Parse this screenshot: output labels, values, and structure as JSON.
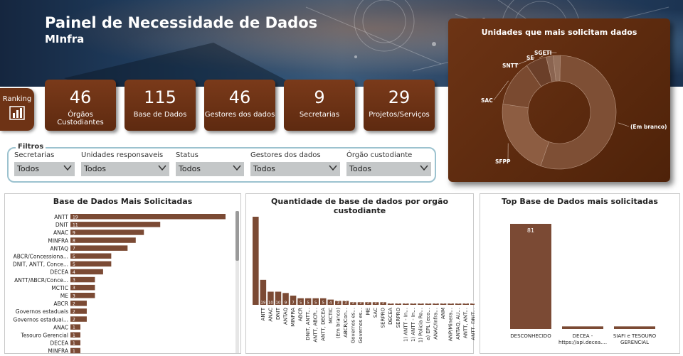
{
  "header": {
    "title": "Painel de Necessidade de Dados",
    "subtitle": "MInfra"
  },
  "ranking": {
    "label": "Ranking"
  },
  "kpis": [
    {
      "value": "46",
      "label": "Órgãos Custodiantes"
    },
    {
      "value": "115",
      "label": "Base de Dados"
    },
    {
      "value": "46",
      "label": "Gestores dos dados"
    },
    {
      "value": "9",
      "label": "Secretarias"
    },
    {
      "value": "29",
      "label": "Projetos/Serviços"
    }
  ],
  "filters": {
    "title": "Filtros",
    "items": [
      {
        "label": "Secretarias",
        "value": "Todos"
      },
      {
        "label": "Unidades responsaveis",
        "value": "Todos"
      },
      {
        "label": "Status",
        "value": "Todos"
      },
      {
        "label": "Gestores dos dados",
        "value": "Todos"
      },
      {
        "label": "Órgão custodiante",
        "value": "Todos"
      }
    ]
  },
  "colors": {
    "brown": "#7a4a30",
    "dark_brown": "#5e2a10",
    "bar": "#7b4a34",
    "filter_border": "#9cc2cf"
  },
  "chart_data": [
    {
      "type": "pie",
      "title": "Unidades que mais solicitam dados",
      "labels": [
        "(Em branco)",
        "SFPP",
        "SAC",
        "SNTT",
        "SE",
        "SGETI"
      ],
      "values": [
        55,
        22,
        13,
        6,
        2,
        2
      ]
    },
    {
      "type": "bar",
      "orientation": "horizontal",
      "title": "Base de Dados Mais Solicitadas",
      "categories": [
        "ANTT",
        "DNIT",
        "ANAC",
        "MINFRA",
        "ANTAQ",
        "ABCR/Concessiona...",
        "DNIT, ANTT, Conce...",
        "DECEA",
        "ANTT/ABCR/Conce...",
        "MCTIC",
        "ME",
        "ABCR",
        "Governos estaduais",
        "Governos estaduai...",
        "ANAC",
        "Tesouro Gerencial",
        "DECEA",
        "MINFRA"
      ],
      "values": [
        19,
        11,
        9,
        8,
        7,
        5,
        5,
        4,
        3,
        3,
        3,
        2,
        2,
        2,
        1,
        1,
        1,
        1
      ]
    },
    {
      "type": "bar",
      "title": "Quantidade de base de dados por orgão custodiante",
      "categories": [
        "",
        "ANTT",
        "ANAC",
        "DNIT",
        "ANTAQ",
        "MINFRA",
        "ABCR",
        "DNIT, ANTT...",
        "ANTT, ABCR...",
        "ANTT, DECEA",
        "MCTIC",
        "(Em branco)",
        "ABCR/Con...",
        "Governos es...",
        "Governos es...",
        "ME",
        "SAC",
        "SERPRO",
        "DECEA",
        "SERPRO",
        "1) ANTT - In...",
        "1) ANTT - In...",
        "1) Policia Ro...",
        "a) EPL (eco...",
        "ANAC/Infra...",
        "ANM",
        "ANP/Minera...",
        "ANTAQ, AU...",
        "ANTT, ANT...",
        "ANTT, DNIT..."
      ],
      "values": [
        67,
        19,
        10,
        10,
        9,
        7,
        5,
        5,
        5,
        5,
        4,
        3,
        3,
        2,
        2,
        2,
        2,
        2,
        1,
        1,
        1,
        1,
        1,
        1,
        1,
        1,
        1,
        1,
        1,
        1
      ]
    },
    {
      "type": "bar",
      "title": "Top Base de Dados mais solicitadas",
      "categories": [
        "DESCONHECIDO",
        "DECEA - https://api.decea....",
        "SIAFI e TESOURO GERENCIAL"
      ],
      "values": [
        81,
        2,
        2
      ]
    }
  ]
}
